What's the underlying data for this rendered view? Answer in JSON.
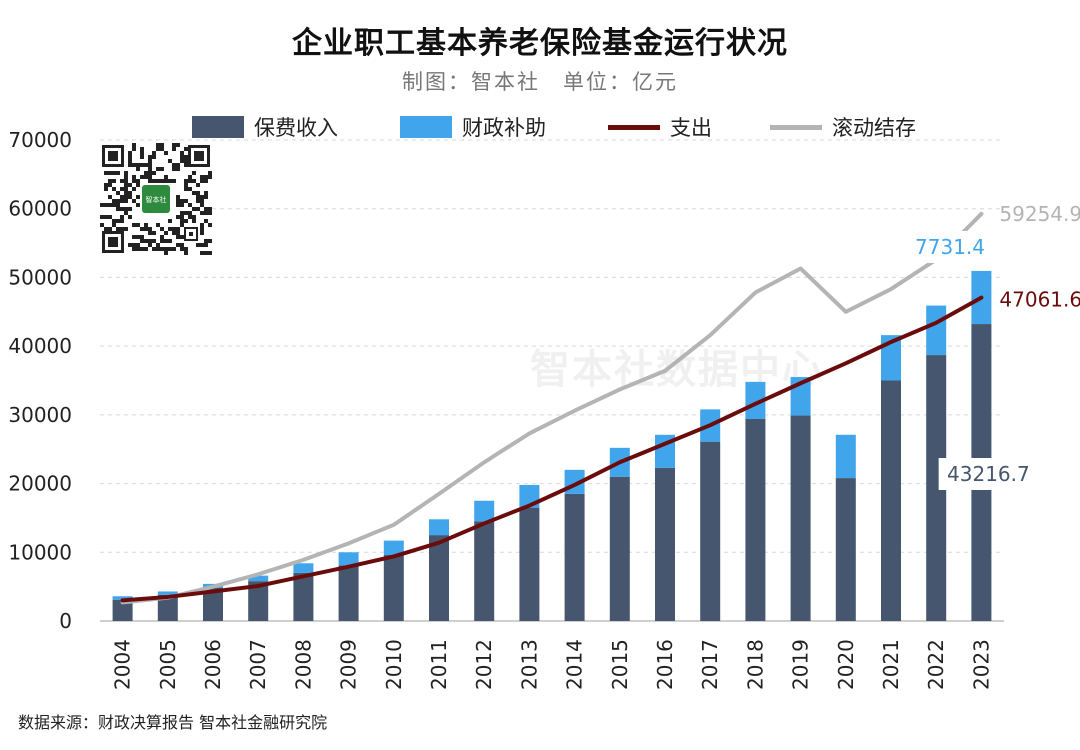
{
  "header": {
    "title": "企业职工基本养老保险基金运行状况",
    "subtitle": "制图：智本社　单位：亿元"
  },
  "legend": [
    {
      "label": "保费收入",
      "color": "#46566f",
      "kind": "bar"
    },
    {
      "label": "财政补助",
      "color": "#41a5ec",
      "kind": "bar"
    },
    {
      "label": "支出",
      "color": "#6b0c0c",
      "kind": "line"
    },
    {
      "label": "滚动结存",
      "color": "#b4b4b4",
      "kind": "line"
    }
  ],
  "watermark": "智本社数据中心",
  "source": "数据来源：财政决算报告 智本社金融研究院",
  "qr_badge": "智本社",
  "chart_data": {
    "type": "bar",
    "stacked": true,
    "categories": [
      "2004",
      "2005",
      "2006",
      "2007",
      "2008",
      "2009",
      "2010",
      "2011",
      "2012",
      "2013",
      "2014",
      "2015",
      "2016",
      "2017",
      "2018",
      "2019",
      "2020",
      "2021",
      "2022",
      "2023"
    ],
    "ylim": [
      0,
      70000
    ],
    "yticks": [
      0,
      10000,
      20000,
      30000,
      40000,
      50000,
      60000,
      70000
    ],
    "grid": true,
    "legend_position": "top",
    "series": [
      {
        "name": "保费收入",
        "type": "bar",
        "color": "#46566f",
        "values": [
          3100,
          3800,
          4800,
          5800,
          7000,
          8100,
          9600,
          12500,
          14500,
          16500,
          18500,
          21000,
          22300,
          26100,
          29400,
          29900,
          20800,
          35000,
          38700,
          43216.7
        ]
      },
      {
        "name": "财政补助",
        "type": "bar",
        "color": "#41a5ec",
        "values": [
          500,
          500,
          600,
          800,
          1400,
          1900,
          2100,
          2300,
          3000,
          3300,
          3500,
          4200,
          4800,
          4700,
          5400,
          5600,
          6300,
          6600,
          7200,
          7731.4
        ]
      },
      {
        "name": "支出",
        "type": "line",
        "color": "#6b0c0c",
        "values": [
          3000,
          3500,
          4300,
          5100,
          6500,
          7900,
          9400,
          11400,
          14200,
          16800,
          19800,
          23100,
          25800,
          28500,
          31600,
          34600,
          37500,
          40600,
          43400,
          47061.6
        ]
      },
      {
        "name": "滚动结存",
        "type": "line",
        "color": "#b4b4b4",
        "values": [
          2700,
          3400,
          5000,
          6800,
          8900,
          11300,
          14000,
          18500,
          23100,
          27300,
          30600,
          33700,
          36400,
          41600,
          47800,
          51300,
          45000,
          48300,
          52600,
          59254.9
        ]
      }
    ],
    "data_labels": [
      {
        "text": "59254.9",
        "series": "滚动结存",
        "color": "#b4b4b4",
        "category": "2023",
        "value": 59254.9
      },
      {
        "text": "7731.4",
        "series": "财政补助",
        "color": "#41a5ec",
        "category": "2023",
        "value": 7731.4
      },
      {
        "text": "47061.6",
        "series": "支出",
        "color": "#6b0c0c",
        "category": "2023",
        "value": 47061.6
      },
      {
        "text": "43216.7",
        "series": "保费收入",
        "color": "#46566f",
        "category": "2023",
        "value": 43216.7
      }
    ]
  }
}
